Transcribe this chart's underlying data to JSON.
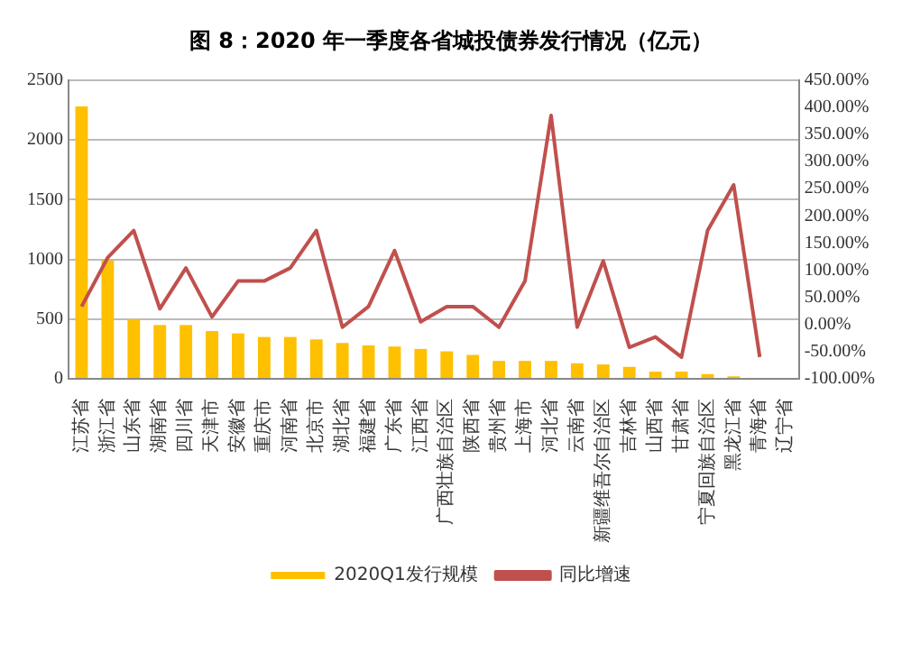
{
  "chart_data": {
    "type": "bar",
    "title": "图 8：2020 年一季度各省城投债券发行情况（亿元）",
    "categories": [
      "江苏省",
      "浙江省",
      "山东省",
      "湖南省",
      "四川省",
      "天津市",
      "安徽省",
      "重庆市",
      "河南省",
      "北京市",
      "湖北省",
      "福建省",
      "广东省",
      "江西省",
      "广西壮族自治区",
      "陕西省",
      "贵州省",
      "上海市",
      "河北省",
      "云南省",
      "新疆维吾尔自治区",
      "吉林省",
      "山西省",
      "甘肃省",
      "宁夏回族自治区",
      "黑龙江省",
      "青海省",
      "辽宁省"
    ],
    "series": [
      {
        "name": "2020Q1发行规模",
        "color": "#ffc000",
        "values": [
          2280,
          990,
          500,
          450,
          450,
          400,
          380,
          350,
          350,
          330,
          300,
          280,
          270,
          250,
          230,
          200,
          150,
          150,
          150,
          130,
          120,
          100,
          60,
          60,
          40,
          20,
          null,
          null
        ]
      },
      {
        "name": "同比增速",
        "type": "line",
        "axis": "y2",
        "color": "#c0504d",
        "values": [
          33,
          123,
          173,
          29,
          104,
          14,
          80,
          80,
          104,
          173,
          -5,
          33,
          136,
          5,
          33,
          33,
          -5,
          80,
          385,
          -5,
          117,
          -42,
          -23,
          -60,
          173,
          257,
          -60,
          null
        ]
      }
    ],
    "ylim": [
      0,
      2500
    ],
    "yticks": [
      0,
      500,
      1000,
      1500,
      2000,
      2500
    ],
    "y2lim": [
      -100,
      450
    ],
    "y2ticks": [
      {
        "value": -100,
        "label": "-100.00%"
      },
      {
        "value": -50,
        "label": "-50.00%"
      },
      {
        "value": 0,
        "label": "0.00%"
      },
      {
        "value": 50,
        "label": "50.00%"
      },
      {
        "value": 100,
        "label": "100.00%"
      },
      {
        "value": 150,
        "label": "150.00%"
      },
      {
        "value": 200,
        "label": "200.00%"
      },
      {
        "value": 250,
        "label": "250.00%"
      },
      {
        "value": 300,
        "label": "300.00%"
      },
      {
        "value": 350,
        "label": "350.00%"
      },
      {
        "value": 400,
        "label": "400.00%"
      },
      {
        "value": 450,
        "label": "450.00%"
      }
    ],
    "grid": "y",
    "legend": "bottom",
    "marker": "none",
    "line_style": "solid"
  }
}
